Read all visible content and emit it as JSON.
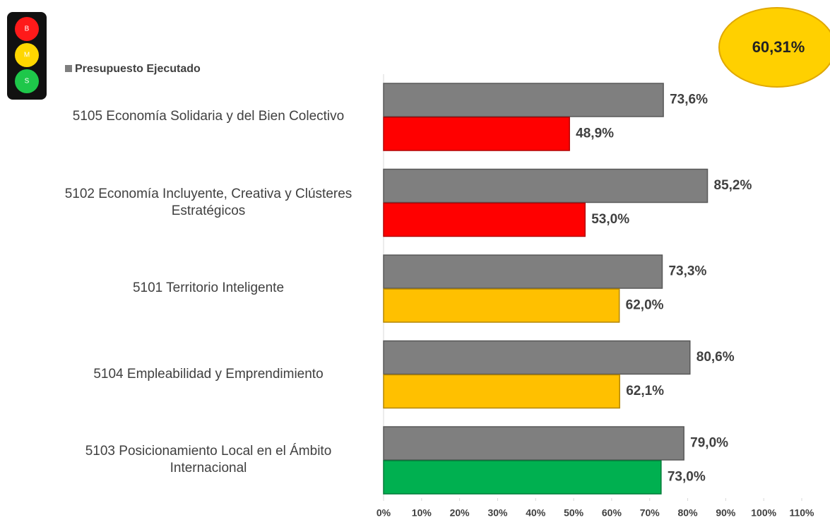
{
  "chart_data": {
    "type": "bar",
    "orientation": "horizontal",
    "categories": [
      "5105 Economía Solidaria y del Bien Colectivo",
      "5102 Economía Incluyente, Creativa y Clústeres Estratégicos",
      "5101 Territorio Inteligente",
      "5104 Empleabilidad y Emprendimiento",
      "5103 Posicionamiento Local en el Ámbito Internacional"
    ],
    "series": [
      {
        "name": "Presupuesto Ejecutado",
        "color": "#7f7f7f",
        "values": [
          73.6,
          85.2,
          73.3,
          80.6,
          79.0
        ],
        "value_labels": [
          "73,6%",
          "85,2%",
          "73,3%",
          "80,6%",
          "79,0%"
        ]
      },
      {
        "colors": [
          "#ff0000",
          "#ff0000",
          "#ffc000",
          "#ffc000",
          "#00b050"
        ],
        "values": [
          48.9,
          53.0,
          62.0,
          62.1,
          73.0
        ],
        "value_labels": [
          "48,9%",
          "53,0%",
          "62,0%",
          "62,1%",
          "73,0%"
        ]
      }
    ],
    "xlim": [
      0,
      110
    ],
    "xticks": [
      {
        "value": 0,
        "label": "0%"
      },
      {
        "value": 10,
        "label": "10%"
      },
      {
        "value": 20,
        "label": "20%"
      },
      {
        "value": 30,
        "label": "30%"
      },
      {
        "value": 40,
        "label": "40%"
      },
      {
        "value": 50,
        "label": "50%"
      },
      {
        "value": 60,
        "label": "60%"
      },
      {
        "value": 70,
        "label": "70%"
      },
      {
        "value": 80,
        "label": "80%"
      },
      {
        "value": 90,
        "label": "90%"
      },
      {
        "value": 100,
        "label": "100%"
      },
      {
        "value": 110,
        "label": "110%"
      }
    ],
    "legend": "top-left"
  },
  "traffic_light": [
    "B",
    "M",
    "S"
  ],
  "badge": "60,31%"
}
